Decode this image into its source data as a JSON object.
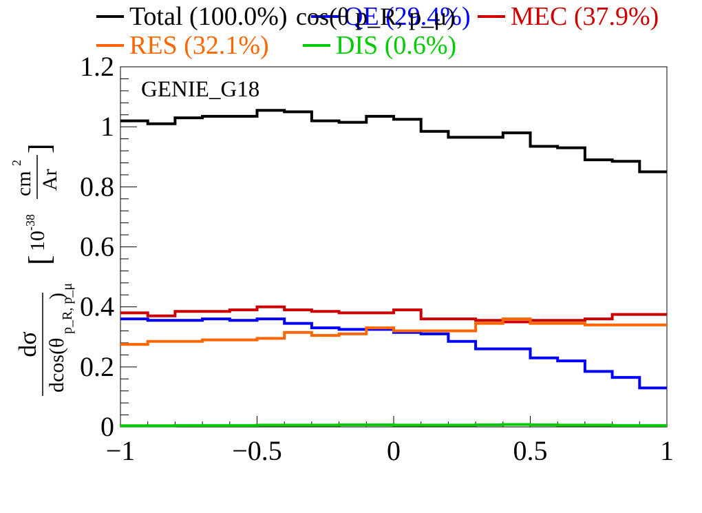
{
  "chart_data": {
    "type": "line",
    "step": true,
    "title": "cos(θ p_R, p_μ)",
    "annotation": "GENIE_G18",
    "ylabel": {
      "numerator": "dσ",
      "denominator": "dcos(θ",
      "denominator_sub": "p_R, p_μ",
      "denominator_close": ")",
      "units_prefix": "10",
      "units_exp": "-38",
      "units_num": "cm",
      "units_num_exp": "2",
      "units_den": "Ar"
    },
    "xlim": [
      -1,
      1
    ],
    "ylim": [
      0,
      1.2
    ],
    "xticks": [
      {
        "value": -1,
        "label": "−1"
      },
      {
        "value": -0.5,
        "label": "−0.5"
      },
      {
        "value": 0,
        "label": "0"
      },
      {
        "value": 0.5,
        "label": "0.5"
      },
      {
        "value": 1,
        "label": "1"
      }
    ],
    "yticks": [
      {
        "value": 0,
        "label": "0"
      },
      {
        "value": 0.2,
        "label": "0.2"
      },
      {
        "value": 0.4,
        "label": "0.4"
      },
      {
        "value": 0.6,
        "label": "0.6"
      },
      {
        "value": 0.8,
        "label": "0.8"
      },
      {
        "value": 1.0,
        "label": "1"
      },
      {
        "value": 1.2,
        "label": "1.2"
      }
    ],
    "bin_edges": [
      -1,
      -0.9,
      -0.8,
      -0.7,
      -0.6,
      -0.5,
      -0.4,
      -0.3,
      -0.2,
      -0.1,
      0,
      0.1,
      0.2,
      0.3,
      0.4,
      0.5,
      0.6,
      0.7,
      0.8,
      0.9,
      1
    ],
    "series": [
      {
        "name": "Total (100.0%)",
        "color": "#000000",
        "values": [
          1.02,
          1.01,
          1.03,
          1.035,
          1.035,
          1.055,
          1.05,
          1.02,
          1.015,
          1.035,
          1.025,
          0.985,
          0.965,
          0.965,
          0.98,
          0.935,
          0.93,
          0.89,
          0.885,
          0.85
        ]
      },
      {
        "name": "QE (29.4%)",
        "color": "#0000ff",
        "values": [
          0.36,
          0.355,
          0.355,
          0.36,
          0.355,
          0.36,
          0.345,
          0.33,
          0.325,
          0.325,
          0.315,
          0.31,
          0.285,
          0.26,
          0.26,
          0.23,
          0.22,
          0.185,
          0.165,
          0.13
        ]
      },
      {
        "name": "MEC (37.9%)",
        "color": "#cc0000",
        "values": [
          0.38,
          0.37,
          0.385,
          0.385,
          0.39,
          0.4,
          0.39,
          0.385,
          0.38,
          0.38,
          0.39,
          0.36,
          0.36,
          0.355,
          0.35,
          0.355,
          0.355,
          0.36,
          0.375,
          0.375
        ]
      },
      {
        "name": "RES (32.1%)",
        "color": "#ff6600",
        "values": [
          0.275,
          0.285,
          0.285,
          0.29,
          0.29,
          0.295,
          0.315,
          0.305,
          0.31,
          0.33,
          0.32,
          0.32,
          0.32,
          0.345,
          0.36,
          0.345,
          0.345,
          0.34,
          0.34,
          0.34
        ]
      },
      {
        "name": "DIS (0.6%)",
        "color": "#00cc00",
        "values": [
          0.004,
          0.004,
          0.005,
          0.005,
          0.005,
          0.006,
          0.006,
          0.006,
          0.007,
          0.007,
          0.006,
          0.006,
          0.006,
          0.007,
          0.008,
          0.007,
          0.006,
          0.006,
          0.005,
          0.005
        ]
      }
    ],
    "legend": {
      "placement": "top",
      "columns": 3
    }
  }
}
